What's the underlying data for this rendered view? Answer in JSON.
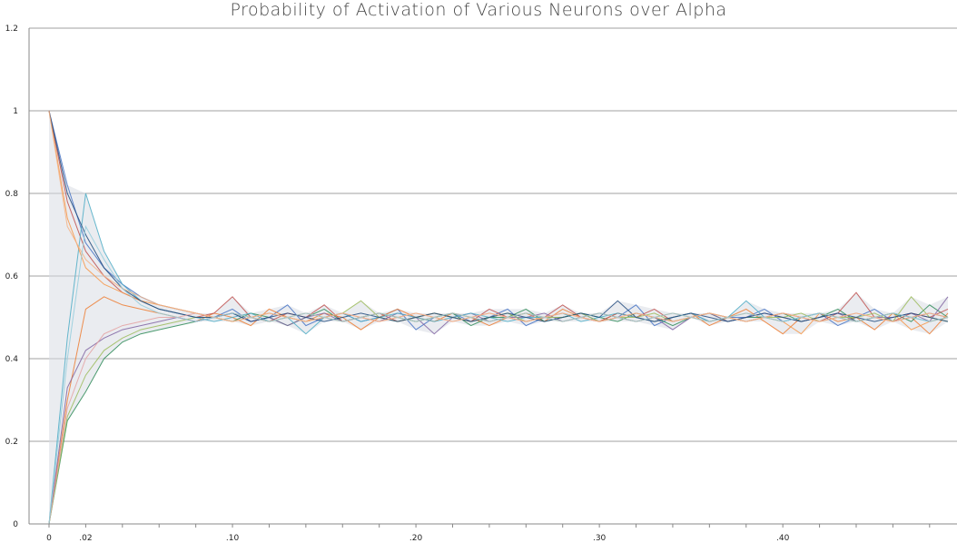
{
  "chart_data": {
    "type": "line",
    "title": "Probability of Activation of Various Neurons over Alpha",
    "xlabel": "",
    "ylabel": "",
    "ylim": [
      0,
      1.2
    ],
    "xlim": [
      0,
      0.49
    ],
    "grid": "horizontal",
    "legend": "none",
    "y_ticks": [
      "0",
      "0.2",
      "0.4",
      "0.6",
      "0.8",
      "1",
      "1.2"
    ],
    "x_ticks": [
      {
        "value": 0,
        "label": "0"
      },
      {
        "value": 0.02,
        "label": ".02"
      },
      {
        "value": 0.1,
        "label": ".10"
      },
      {
        "value": 0.2,
        "label": ".20"
      },
      {
        "value": 0.3,
        "label": ".30"
      },
      {
        "value": 0.4,
        "label": ".40"
      }
    ],
    "x": [
      0,
      0.01,
      0.02,
      0.03,
      0.04,
      0.05,
      0.06,
      0.07,
      0.08,
      0.09,
      0.1,
      0.11,
      0.12,
      0.13,
      0.14,
      0.15,
      0.16,
      0.17,
      0.18,
      0.19,
      0.2,
      0.21,
      0.22,
      0.23,
      0.24,
      0.25,
      0.26,
      0.27,
      0.28,
      0.29,
      0.3,
      0.31,
      0.32,
      0.33,
      0.34,
      0.35,
      0.36,
      0.37,
      0.38,
      0.39,
      0.4,
      0.41,
      0.42,
      0.43,
      0.44,
      0.45,
      0.46,
      0.47,
      0.48,
      0.49
    ],
    "series": [
      {
        "color": "#4472c4",
        "values": [
          1,
          0.82,
          0.68,
          0.62,
          0.58,
          0.55,
          0.53,
          0.52,
          0.51,
          0.5,
          0.52,
          0.49,
          0.5,
          0.53,
          0.48,
          0.5,
          0.51,
          0.49,
          0.5,
          0.52,
          0.47,
          0.5,
          0.51,
          0.49,
          0.5,
          0.52,
          0.48,
          0.5,
          0.5,
          0.51,
          0.49,
          0.5,
          0.53,
          0.48,
          0.5,
          0.51,
          0.49,
          0.5,
          0.5,
          0.52,
          0.49,
          0.5,
          0.51,
          0.48,
          0.5,
          0.52,
          0.49,
          0.5,
          0.51,
          0.5
        ]
      },
      {
        "color": "#ed7d31",
        "values": [
          0,
          0.3,
          0.52,
          0.55,
          0.53,
          0.52,
          0.51,
          0.5,
          0.49,
          0.51,
          0.5,
          0.48,
          0.52,
          0.5,
          0.49,
          0.51,
          0.5,
          0.47,
          0.5,
          0.52,
          0.5,
          0.49,
          0.51,
          0.5,
          0.48,
          0.5,
          0.51,
          0.49,
          0.52,
          0.5,
          0.49,
          0.51,
          0.5,
          0.49,
          0.5,
          0.51,
          0.48,
          0.5,
          0.52,
          0.49,
          0.46,
          0.5,
          0.51,
          0.49,
          0.5,
          0.47,
          0.51,
          0.5,
          0.46,
          0.51
        ]
      },
      {
        "color": "#2e8b57",
        "values": [
          0,
          0.25,
          0.32,
          0.4,
          0.44,
          0.46,
          0.47,
          0.48,
          0.49,
          0.5,
          0.49,
          0.51,
          0.5,
          0.48,
          0.5,
          0.52,
          0.49,
          0.5,
          0.51,
          0.5,
          0.49,
          0.5,
          0.51,
          0.48,
          0.5,
          0.5,
          0.52,
          0.49,
          0.5,
          0.51,
          0.5,
          0.49,
          0.51,
          0.5,
          0.48,
          0.5,
          0.51,
          0.49,
          0.5,
          0.5,
          0.51,
          0.49,
          0.5,
          0.52,
          0.49,
          0.5,
          0.51,
          0.49,
          0.53,
          0.5
        ]
      },
      {
        "color": "#c0504d",
        "values": [
          1,
          0.78,
          0.66,
          0.6,
          0.56,
          0.54,
          0.52,
          0.51,
          0.5,
          0.51,
          0.55,
          0.5,
          0.49,
          0.51,
          0.5,
          0.53,
          0.49,
          0.5,
          0.51,
          0.49,
          0.5,
          0.51,
          0.5,
          0.49,
          0.52,
          0.5,
          0.49,
          0.5,
          0.53,
          0.5,
          0.49,
          0.51,
          0.5,
          0.52,
          0.49,
          0.5,
          0.51,
          0.5,
          0.49,
          0.5,
          0.51,
          0.5,
          0.49,
          0.51,
          0.56,
          0.5,
          0.49,
          0.51,
          0.5,
          0.52
        ]
      },
      {
        "color": "#8064a2",
        "values": [
          0,
          0.33,
          0.42,
          0.45,
          0.47,
          0.48,
          0.49,
          0.5,
          0.49,
          0.5,
          0.51,
          0.49,
          0.5,
          0.48,
          0.5,
          0.51,
          0.49,
          0.5,
          0.49,
          0.51,
          0.5,
          0.46,
          0.5,
          0.51,
          0.49,
          0.5,
          0.5,
          0.51,
          0.49,
          0.5,
          0.51,
          0.5,
          0.49,
          0.5,
          0.47,
          0.5,
          0.51,
          0.49,
          0.5,
          0.51,
          0.5,
          0.49,
          0.5,
          0.51,
          0.49,
          0.5,
          0.5,
          0.51,
          0.49,
          0.55
        ]
      },
      {
        "color": "#4bacc6",
        "values": [
          0,
          0.45,
          0.8,
          0.66,
          0.58,
          0.54,
          0.52,
          0.51,
          0.5,
          0.49,
          0.5,
          0.51,
          0.49,
          0.5,
          0.46,
          0.5,
          0.51,
          0.49,
          0.5,
          0.51,
          0.5,
          0.49,
          0.5,
          0.51,
          0.5,
          0.49,
          0.5,
          0.5,
          0.51,
          0.49,
          0.5,
          0.51,
          0.5,
          0.49,
          0.5,
          0.51,
          0.49,
          0.5,
          0.54,
          0.5,
          0.49,
          0.5,
          0.51,
          0.5,
          0.49,
          0.5,
          0.51,
          0.5,
          0.49,
          0.5
        ]
      },
      {
        "color": "#9bbb59",
        "values": [
          0,
          0.26,
          0.36,
          0.42,
          0.45,
          0.47,
          0.48,
          0.49,
          0.5,
          0.5,
          0.49,
          0.5,
          0.51,
          0.5,
          0.49,
          0.5,
          0.51,
          0.54,
          0.5,
          0.49,
          0.5,
          0.51,
          0.5,
          0.49,
          0.5,
          0.51,
          0.49,
          0.5,
          0.5,
          0.51,
          0.49,
          0.5,
          0.5,
          0.51,
          0.49,
          0.5,
          0.51,
          0.5,
          0.49,
          0.5,
          0.5,
          0.51,
          0.49,
          0.5,
          0.5,
          0.51,
          0.49,
          0.55,
          0.5,
          0.49
        ]
      },
      {
        "color": "#f79646",
        "values": [
          1,
          0.74,
          0.62,
          0.58,
          0.56,
          0.54,
          0.53,
          0.52,
          0.51,
          0.5,
          0.51,
          0.5,
          0.49,
          0.5,
          0.51,
          0.5,
          0.49,
          0.5,
          0.51,
          0.5,
          0.49,
          0.5,
          0.51,
          0.5,
          0.49,
          0.5,
          0.51,
          0.5,
          0.49,
          0.5,
          0.51,
          0.5,
          0.49,
          0.5,
          0.51,
          0.5,
          0.49,
          0.5,
          0.51,
          0.5,
          0.49,
          0.46,
          0.51,
          0.5,
          0.49,
          0.5,
          0.51,
          0.47,
          0.49,
          0.5
        ]
      },
      {
        "color": "#1f497d",
        "values": [
          1,
          0.8,
          0.7,
          0.62,
          0.57,
          0.54,
          0.52,
          0.51,
          0.5,
          0.5,
          0.51,
          0.49,
          0.5,
          0.51,
          0.5,
          0.49,
          0.5,
          0.51,
          0.5,
          0.49,
          0.5,
          0.51,
          0.5,
          0.49,
          0.5,
          0.51,
          0.5,
          0.49,
          0.5,
          0.51,
          0.5,
          0.54,
          0.5,
          0.49,
          0.5,
          0.51,
          0.5,
          0.49,
          0.5,
          0.51,
          0.5,
          0.49,
          0.5,
          0.51,
          0.5,
          0.49,
          0.5,
          0.51,
          0.5,
          0.49
        ]
      },
      {
        "color": "#e4a1a1",
        "values": [
          0,
          0.28,
          0.4,
          0.46,
          0.48,
          0.49,
          0.5,
          0.5,
          0.51,
          0.5,
          0.49,
          0.5,
          0.51,
          0.5,
          0.49,
          0.5,
          0.51,
          0.5,
          0.49,
          0.5,
          0.51,
          0.5,
          0.49,
          0.5,
          0.51,
          0.5,
          0.49,
          0.5,
          0.51,
          0.5,
          0.49,
          0.5,
          0.51,
          0.5,
          0.49,
          0.5,
          0.51,
          0.5,
          0.49,
          0.5,
          0.51,
          0.5,
          0.49,
          0.5,
          0.51,
          0.5,
          0.49,
          0.5,
          0.51,
          0.5
        ]
      },
      {
        "color": "#f4b183",
        "values": [
          1,
          0.72,
          0.64,
          0.6,
          0.57,
          0.55,
          0.53,
          0.52,
          0.51,
          0.5,
          0.49,
          0.5,
          0.51,
          0.5,
          0.49,
          0.5,
          0.51,
          0.5,
          0.49,
          0.5,
          0.51,
          0.5,
          0.49,
          0.5,
          0.51,
          0.5,
          0.49,
          0.5,
          0.51,
          0.5,
          0.49,
          0.5,
          0.51,
          0.5,
          0.49,
          0.5,
          0.51,
          0.5,
          0.49,
          0.5,
          0.51,
          0.5,
          0.49,
          0.5,
          0.51,
          0.5,
          0.49,
          0.5,
          0.51,
          0.5
        ]
      },
      {
        "color": "#92cddc",
        "values": [
          0,
          0.4,
          0.72,
          0.64,
          0.57,
          0.53,
          0.51,
          0.5,
          0.49,
          0.5,
          0.51,
          0.5,
          0.49,
          0.5,
          0.51,
          0.5,
          0.49,
          0.5,
          0.51,
          0.5,
          0.49,
          0.5,
          0.51,
          0.5,
          0.49,
          0.5,
          0.51,
          0.5,
          0.49,
          0.5,
          0.51,
          0.5,
          0.49,
          0.5,
          0.51,
          0.5,
          0.49,
          0.5,
          0.51,
          0.5,
          0.49,
          0.5,
          0.51,
          0.5,
          0.49,
          0.5,
          0.51,
          0.5,
          0.49,
          0.5
        ]
      }
    ]
  },
  "style": {
    "grid_color": "#a0a0a0",
    "axis_color": "#888888",
    "text_color": "#222222",
    "title_color": "#444444"
  }
}
